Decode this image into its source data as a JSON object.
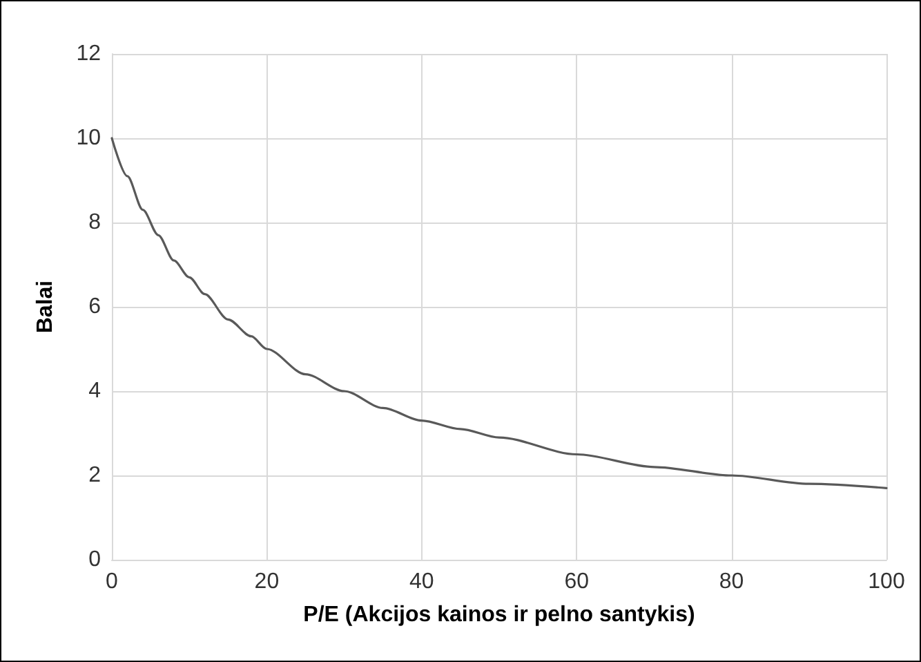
{
  "chart_data": {
    "type": "line",
    "xlabel": "P/E (Akcijos kainos ir pelno santykis)",
    "ylabel": "Balai",
    "x": [
      0,
      2,
      4,
      6,
      8,
      10,
      12,
      15,
      18,
      20,
      25,
      30,
      35,
      40,
      45,
      50,
      60,
      70,
      80,
      90,
      100
    ],
    "series": [
      {
        "color": "#595959",
        "values": [
          10,
          9.1,
          8.3,
          7.7,
          7.1,
          6.7,
          6.3,
          5.7,
          5.3,
          5,
          4.4,
          4,
          3.6,
          3.3,
          3.1,
          2.9,
          2.5,
          2.2,
          2,
          1.8,
          1.7
        ]
      }
    ],
    "xlim": [
      0,
      100
    ],
    "xticks": [
      0,
      20,
      40,
      60,
      80,
      100
    ],
    "ylim": [
      0,
      12
    ],
    "yticks": [
      0,
      2,
      4,
      6,
      8,
      10,
      12
    ],
    "grid": true,
    "marker": "none",
    "line_style": "solid"
  }
}
